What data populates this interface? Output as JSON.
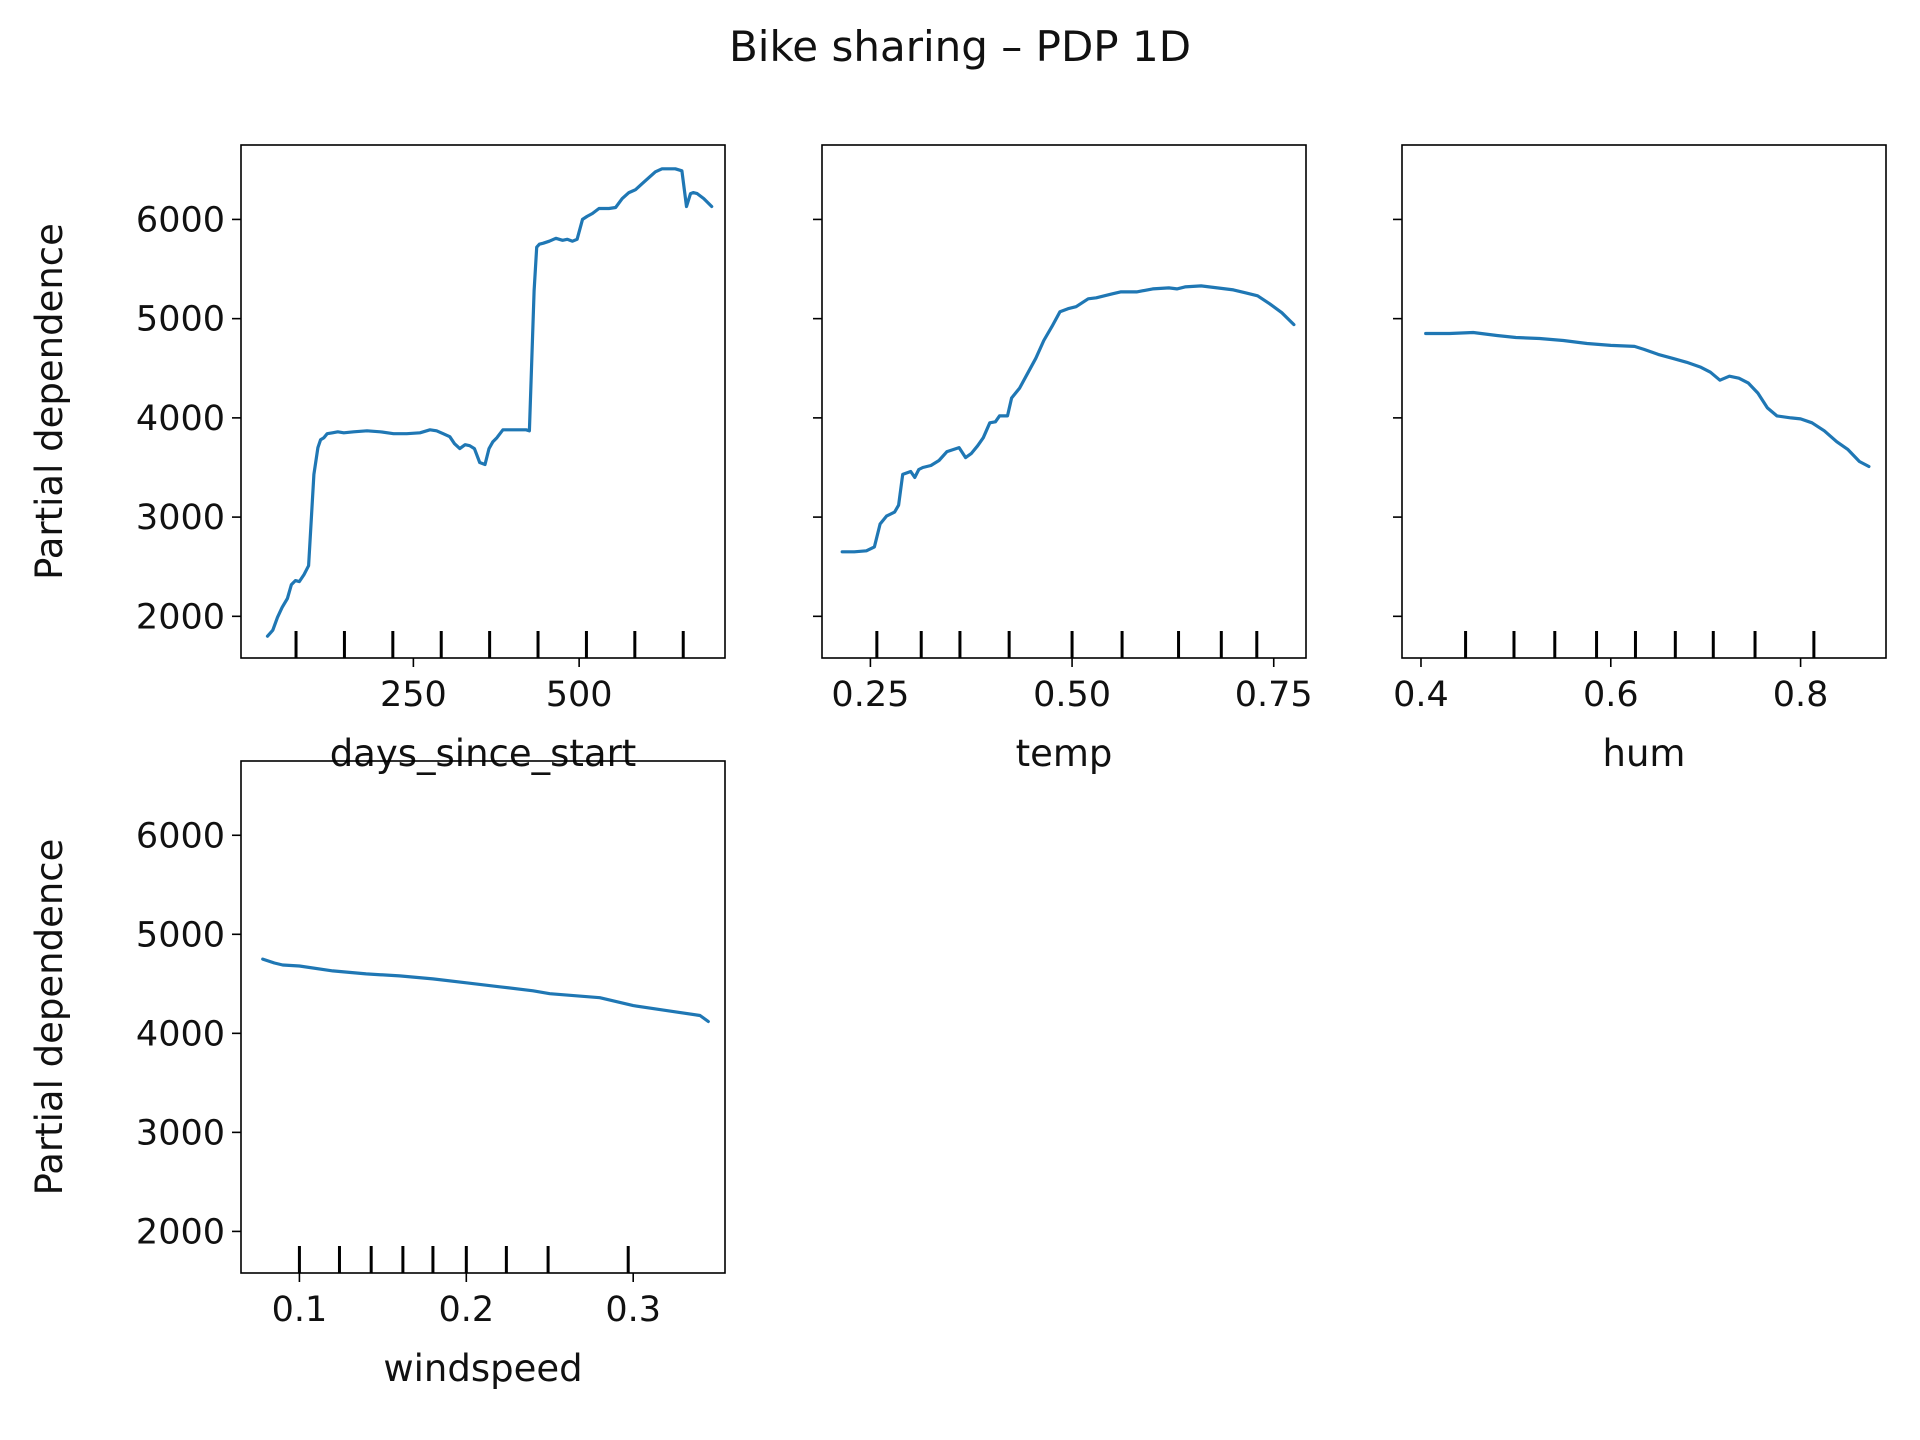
{
  "figure": {
    "title": "Bike sharing – PDP 1D"
  },
  "colors": {
    "line": "#1f77b4",
    "axes": "#000000",
    "deciles": "#000000",
    "background": "#ffffff"
  },
  "chart_data": [
    {
      "type": "line",
      "xlabel": "days_since_start",
      "ylabel": "Partial dependence",
      "xlim": [
        -10,
        720
      ],
      "ylim": [
        1580,
        6750
      ],
      "xticks": [
        250,
        500
      ],
      "xtick_labels": [
        "250",
        "500"
      ],
      "yticks": [
        2000,
        3000,
        4000,
        5000,
        6000
      ],
      "ytick_labels": [
        "2000",
        "3000",
        "4000",
        "5000",
        "6000"
      ],
      "show_yticklabels": true,
      "grid": false,
      "deciles": [
        73,
        146,
        219,
        292,
        365,
        438,
        511,
        584,
        657
      ],
      "x": [
        30,
        38,
        45,
        52,
        60,
        66,
        72,
        78,
        85,
        92,
        100,
        106,
        110,
        115,
        120,
        128,
        136,
        145,
        160,
        180,
        200,
        220,
        240,
        260,
        275,
        285,
        295,
        305,
        312,
        320,
        328,
        335,
        342,
        350,
        358,
        364,
        370,
        376,
        385,
        392,
        400,
        410,
        420,
        425,
        432,
        436,
        440,
        446,
        455,
        465,
        475,
        482,
        490,
        497,
        505,
        512,
        520,
        530,
        545,
        555,
        565,
        575,
        585,
        595,
        605,
        615,
        625,
        635,
        645,
        655,
        662,
        668,
        672,
        678,
        688,
        700
      ],
      "y": [
        1800,
        1860,
        1990,
        2090,
        2180,
        2320,
        2360,
        2350,
        2420,
        2510,
        3430,
        3700,
        3780,
        3800,
        3840,
        3850,
        3860,
        3850,
        3860,
        3870,
        3860,
        3840,
        3840,
        3850,
        3880,
        3870,
        3840,
        3810,
        3740,
        3690,
        3730,
        3720,
        3690,
        3550,
        3530,
        3690,
        3760,
        3800,
        3880,
        3880,
        3880,
        3880,
        3880,
        3870,
        5280,
        5720,
        5750,
        5760,
        5780,
        5810,
        5790,
        5800,
        5780,
        5800,
        6000,
        6030,
        6060,
        6110,
        6110,
        6120,
        6210,
        6270,
        6300,
        6360,
        6420,
        6480,
        6510,
        6510,
        6510,
        6490,
        6130,
        6260,
        6270,
        6260,
        6210,
        6130
      ]
    },
    {
      "type": "line",
      "xlabel": "temp",
      "ylabel": "",
      "xlim": [
        0.19,
        0.79
      ],
      "ylim": [
        1580,
        6750
      ],
      "xticks": [
        0.25,
        0.5,
        0.75
      ],
      "xtick_labels": [
        "0.25",
        "0.50",
        "0.75"
      ],
      "yticks": [
        2000,
        3000,
        4000,
        5000,
        6000
      ],
      "ytick_labels": [
        "2000",
        "3000",
        "4000",
        "5000",
        "6000"
      ],
      "show_yticklabels": false,
      "grid": false,
      "deciles": [
        0.258,
        0.313,
        0.361,
        0.422,
        0.5,
        0.562,
        0.632,
        0.685,
        0.729
      ],
      "x": [
        0.215,
        0.23,
        0.245,
        0.255,
        0.262,
        0.27,
        0.28,
        0.285,
        0.29,
        0.3,
        0.305,
        0.31,
        0.315,
        0.325,
        0.335,
        0.345,
        0.36,
        0.368,
        0.375,
        0.383,
        0.39,
        0.398,
        0.405,
        0.41,
        0.42,
        0.425,
        0.435,
        0.445,
        0.455,
        0.465,
        0.475,
        0.485,
        0.495,
        0.505,
        0.52,
        0.53,
        0.54,
        0.55,
        0.56,
        0.58,
        0.6,
        0.62,
        0.63,
        0.64,
        0.66,
        0.68,
        0.7,
        0.715,
        0.73,
        0.745,
        0.76,
        0.775
      ],
      "y": [
        2650,
        2650,
        2660,
        2700,
        2930,
        3010,
        3050,
        3120,
        3430,
        3460,
        3400,
        3480,
        3500,
        3520,
        3570,
        3660,
        3700,
        3600,
        3640,
        3720,
        3800,
        3950,
        3960,
        4020,
        4020,
        4200,
        4300,
        4450,
        4600,
        4780,
        4920,
        5070,
        5100,
        5120,
        5200,
        5210,
        5230,
        5250,
        5270,
        5270,
        5300,
        5310,
        5300,
        5320,
        5330,
        5310,
        5290,
        5260,
        5230,
        5150,
        5060,
        4940
      ]
    },
    {
      "type": "line",
      "xlabel": "hum",
      "ylabel": "",
      "xlim": [
        0.38,
        0.89
      ],
      "ylim": [
        1580,
        6750
      ],
      "xticks": [
        0.4,
        0.6,
        0.8
      ],
      "xtick_labels": [
        "0.4",
        "0.6",
        "0.8"
      ],
      "yticks": [
        2000,
        3000,
        4000,
        5000,
        6000
      ],
      "ytick_labels": [
        "2000",
        "3000",
        "4000",
        "5000",
        "6000"
      ],
      "show_yticklabels": false,
      "grid": false,
      "deciles": [
        0.447,
        0.498,
        0.541,
        0.585,
        0.626,
        0.668,
        0.708,
        0.752,
        0.814
      ],
      "x": [
        0.405,
        0.43,
        0.455,
        0.48,
        0.5,
        0.525,
        0.55,
        0.575,
        0.6,
        0.625,
        0.635,
        0.65,
        0.665,
        0.68,
        0.695,
        0.705,
        0.715,
        0.725,
        0.735,
        0.745,
        0.755,
        0.765,
        0.775,
        0.79,
        0.8,
        0.812,
        0.825,
        0.838,
        0.85,
        0.862,
        0.872
      ],
      "y": [
        4850,
        4850,
        4860,
        4830,
        4810,
        4800,
        4780,
        4750,
        4730,
        4720,
        4690,
        4640,
        4600,
        4560,
        4510,
        4460,
        4380,
        4420,
        4400,
        4350,
        4250,
        4100,
        4020,
        4000,
        3990,
        3950,
        3870,
        3760,
        3680,
        3560,
        3510
      ]
    },
    {
      "type": "line",
      "xlabel": "windspeed",
      "ylabel": "Partial dependence",
      "xlim": [
        0.065,
        0.355
      ],
      "ylim": [
        1580,
        6750
      ],
      "xticks": [
        0.1,
        0.2,
        0.3
      ],
      "xtick_labels": [
        "0.1",
        "0.2",
        "0.3"
      ],
      "yticks": [
        2000,
        3000,
        4000,
        5000,
        6000
      ],
      "ytick_labels": [
        "2000",
        "3000",
        "4000",
        "5000",
        "6000"
      ],
      "show_yticklabels": true,
      "grid": false,
      "deciles": [
        0.1,
        0.124,
        0.143,
        0.162,
        0.18,
        0.2,
        0.224,
        0.249,
        0.297
      ],
      "x": [
        0.078,
        0.085,
        0.09,
        0.1,
        0.12,
        0.14,
        0.16,
        0.18,
        0.2,
        0.22,
        0.24,
        0.25,
        0.28,
        0.3,
        0.32,
        0.34,
        0.345
      ],
      "y": [
        4750,
        4710,
        4690,
        4680,
        4630,
        4600,
        4580,
        4550,
        4510,
        4470,
        4430,
        4400,
        4360,
        4280,
        4230,
        4180,
        4120
      ]
    }
  ]
}
